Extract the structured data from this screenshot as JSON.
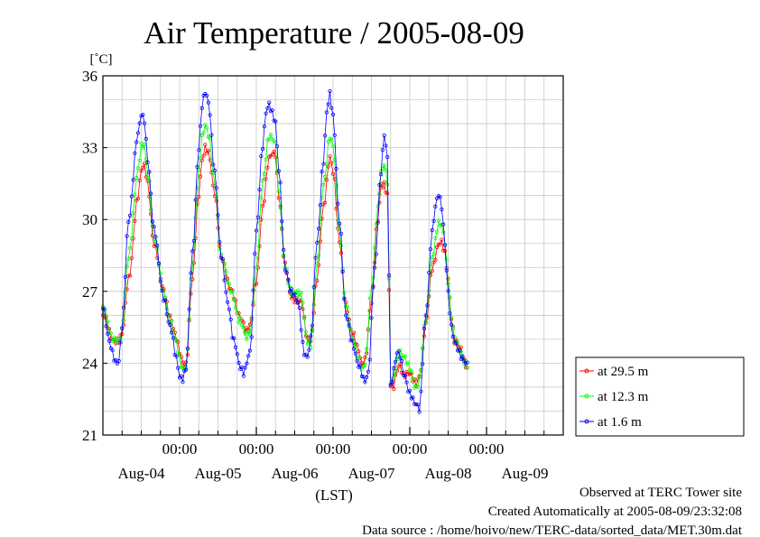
{
  "chart_data": {
    "type": "line",
    "title": "Air Temperature / 2005-08-09",
    "ylabel": "[˚C]",
    "xlabel": "(LST)",
    "ylim": [
      21,
      36
    ],
    "yticks": [
      21,
      24,
      27,
      30,
      33,
      36
    ],
    "x_range_hours": [
      0,
      144
    ],
    "midnight_tick_labels": [
      "00:00",
      "00:00",
      "00:00",
      "00:00",
      "00:00"
    ],
    "day_labels": [
      "Aug-04",
      "Aug-05",
      "Aug-06",
      "Aug-07",
      "Aug-08",
      "Aug-09"
    ],
    "grid": true,
    "legend_position": "right",
    "series": [
      {
        "name": "at 29.5 m",
        "color": "#ff0000",
        "keyframes": [
          [
            0,
            26.0
          ],
          [
            3,
            25.0
          ],
          [
            5,
            25.0
          ],
          [
            6,
            25.2
          ],
          [
            8,
            27.5
          ],
          [
            11,
            31.0
          ],
          [
            12,
            32.0
          ],
          [
            13,
            32.2
          ],
          [
            14,
            31.5
          ],
          [
            16,
            29.0
          ],
          [
            19,
            27.0
          ],
          [
            21,
            26.0
          ],
          [
            23,
            25.0
          ],
          [
            24,
            24.4
          ],
          [
            25,
            24.0
          ],
          [
            26,
            24.0
          ],
          [
            28,
            27.5
          ],
          [
            30,
            31.0
          ],
          [
            31,
            32.5
          ],
          [
            32,
            33.1
          ],
          [
            33,
            32.8
          ],
          [
            35,
            31.0
          ],
          [
            37,
            28.5
          ],
          [
            40,
            27.0
          ],
          [
            43,
            26.0
          ],
          [
            45,
            25.3
          ],
          [
            46,
            25.5
          ],
          [
            48,
            27.5
          ],
          [
            50,
            30.5
          ],
          [
            52,
            32.5
          ],
          [
            53,
            32.8
          ],
          [
            54,
            32.8
          ],
          [
            55,
            31.0
          ],
          [
            57,
            28.0
          ],
          [
            59,
            26.8
          ],
          [
            62,
            26.5
          ],
          [
            64,
            25.0
          ],
          [
            65,
            25.0
          ],
          [
            67,
            27.5
          ],
          [
            69,
            30.5
          ],
          [
            71,
            32.7
          ],
          [
            72,
            32.0
          ],
          [
            74,
            29.0
          ],
          [
            76,
            26.5
          ],
          [
            78,
            25.2
          ],
          [
            80,
            24.5
          ],
          [
            81,
            24.0
          ],
          [
            82,
            24.2
          ],
          [
            84,
            26.5
          ],
          [
            86,
            30.0
          ],
          [
            87,
            31.5
          ],
          [
            88,
            31.5
          ],
          [
            89,
            31.0
          ],
          [
            90,
            23.0
          ],
          [
            91,
            23.0
          ],
          [
            92,
            23.8
          ],
          [
            93,
            24.0
          ],
          [
            94,
            23.5
          ],
          [
            96,
            23.5
          ],
          [
            98,
            23.2
          ],
          [
            99,
            23.5
          ],
          [
            101,
            25.5
          ],
          [
            103,
            28.0
          ],
          [
            105,
            29.0
          ],
          [
            106,
            29.0
          ],
          [
            107,
            28.5
          ],
          [
            108,
            27.5
          ],
          [
            109,
            26.0
          ],
          [
            110,
            25.0
          ],
          [
            112,
            24.5
          ],
          [
            113,
            24.0
          ],
          [
            114,
            23.8
          ]
        ]
      },
      {
        "name": "at 12.3 m",
        "color": "#00ff00",
        "keyframes": [
          [
            0,
            26.2
          ],
          [
            3,
            25.1
          ],
          [
            5,
            24.9
          ],
          [
            6,
            25.3
          ],
          [
            8,
            28.5
          ],
          [
            11,
            32.0
          ],
          [
            12,
            33.0
          ],
          [
            13,
            33.1
          ],
          [
            14,
            32.0
          ],
          [
            16,
            29.2
          ],
          [
            19,
            27.0
          ],
          [
            21,
            25.8
          ],
          [
            23,
            24.8
          ],
          [
            24,
            24.2
          ],
          [
            25,
            23.8
          ],
          [
            26,
            23.9
          ],
          [
            28,
            28.0
          ],
          [
            30,
            32.0
          ],
          [
            31,
            33.5
          ],
          [
            32,
            34.0
          ],
          [
            33,
            33.5
          ],
          [
            35,
            31.5
          ],
          [
            37,
            28.5
          ],
          [
            40,
            27.0
          ],
          [
            43,
            25.8
          ],
          [
            45,
            25.0
          ],
          [
            46,
            25.3
          ],
          [
            48,
            28.0
          ],
          [
            50,
            31.5
          ],
          [
            52,
            33.5
          ],
          [
            53,
            33.5
          ],
          [
            54,
            33.2
          ],
          [
            55,
            31.0
          ],
          [
            57,
            28.0
          ],
          [
            59,
            27.0
          ],
          [
            62,
            26.8
          ],
          [
            64,
            25.0
          ],
          [
            65,
            24.8
          ],
          [
            67,
            28.0
          ],
          [
            69,
            31.5
          ],
          [
            71,
            33.5
          ],
          [
            72,
            33.0
          ],
          [
            74,
            29.5
          ],
          [
            76,
            26.5
          ],
          [
            78,
            25.0
          ],
          [
            80,
            24.2
          ],
          [
            81,
            23.8
          ],
          [
            82,
            24.0
          ],
          [
            84,
            27.0
          ],
          [
            86,
            30.5
          ],
          [
            87,
            32.0
          ],
          [
            88,
            32.3
          ],
          [
            89,
            31.5
          ],
          [
            90,
            23.2
          ],
          [
            91,
            23.4
          ],
          [
            92,
            24.2
          ],
          [
            93,
            24.5
          ],
          [
            94,
            24.2
          ],
          [
            96,
            23.8
          ],
          [
            98,
            23.0
          ],
          [
            99,
            23.3
          ],
          [
            101,
            25.8
          ],
          [
            103,
            28.5
          ],
          [
            105,
            29.8
          ],
          [
            106,
            29.7
          ],
          [
            107,
            29.0
          ],
          [
            108,
            27.5
          ],
          [
            109,
            26.0
          ],
          [
            110,
            25.0
          ],
          [
            112,
            24.4
          ],
          [
            113,
            24.1
          ],
          [
            114,
            24.0
          ]
        ]
      },
      {
        "name": "at 1.6 m",
        "color": "#0000ff",
        "keyframes": [
          [
            0,
            26.3
          ],
          [
            2,
            25.0
          ],
          [
            3,
            24.5
          ],
          [
            4,
            24.0
          ],
          [
            5,
            24.0
          ],
          [
            6,
            25.5
          ],
          [
            8,
            30.0
          ],
          [
            11,
            33.5
          ],
          [
            12,
            34.4
          ],
          [
            13,
            34.2
          ],
          [
            14,
            32.5
          ],
          [
            16,
            29.5
          ],
          [
            19,
            26.8
          ],
          [
            21,
            25.5
          ],
          [
            23,
            24.2
          ],
          [
            24,
            23.5
          ],
          [
            25,
            23.4
          ],
          [
            26,
            23.8
          ],
          [
            28,
            28.5
          ],
          [
            30,
            33.0
          ],
          [
            31,
            34.8
          ],
          [
            32,
            35.3
          ],
          [
            33,
            34.8
          ],
          [
            35,
            32.0
          ],
          [
            37,
            28.5
          ],
          [
            39,
            26.5
          ],
          [
            41,
            25.0
          ],
          [
            43,
            23.8
          ],
          [
            44,
            23.5
          ],
          [
            46,
            24.5
          ],
          [
            48,
            29.5
          ],
          [
            50,
            33.0
          ],
          [
            51,
            34.5
          ],
          [
            52,
            34.9
          ],
          [
            53,
            34.5
          ],
          [
            54,
            34.0
          ],
          [
            55,
            32.0
          ],
          [
            57,
            28.0
          ],
          [
            59,
            27.0
          ],
          [
            61,
            26.5
          ],
          [
            63,
            24.5
          ],
          [
            64,
            24.3
          ],
          [
            65,
            25.0
          ],
          [
            67,
            29.0
          ],
          [
            69,
            32.5
          ],
          [
            70,
            34.5
          ],
          [
            71,
            35.2
          ],
          [
            72,
            34.2
          ],
          [
            74,
            30.0
          ],
          [
            76,
            26.0
          ],
          [
            78,
            24.8
          ],
          [
            80,
            24.0
          ],
          [
            82,
            23.2
          ],
          [
            83,
            23.5
          ],
          [
            85,
            28.0
          ],
          [
            87,
            32.0
          ],
          [
            88,
            33.5
          ],
          [
            89,
            32.5
          ],
          [
            90,
            23.0
          ],
          [
            91,
            23.8
          ],
          [
            92,
            24.5
          ],
          [
            93,
            24.3
          ],
          [
            94,
            23.5
          ],
          [
            96,
            22.8
          ],
          [
            98,
            22.3
          ],
          [
            99,
            22.0
          ],
          [
            101,
            26.0
          ],
          [
            103,
            29.5
          ],
          [
            104,
            30.5
          ],
          [
            105,
            31.0
          ],
          [
            106,
            30.5
          ],
          [
            107,
            29.0
          ],
          [
            108,
            27.0
          ],
          [
            109,
            25.5
          ],
          [
            110,
            24.8
          ],
          [
            112,
            24.3
          ],
          [
            113,
            24.2
          ],
          [
            114,
            24.0
          ]
        ]
      }
    ]
  },
  "legend": {
    "items": [
      "at 29.5 m",
      "at 12.3 m",
      "at 1.6 m"
    ]
  },
  "footer": {
    "line1": "Observed at TERC Tower site",
    "line2": "Created Automatically at 2005-08-09/23:32:08",
    "line3": "Data source : /home/hoivo/new/TERC-data/sorted_data/MET.30m.dat"
  }
}
